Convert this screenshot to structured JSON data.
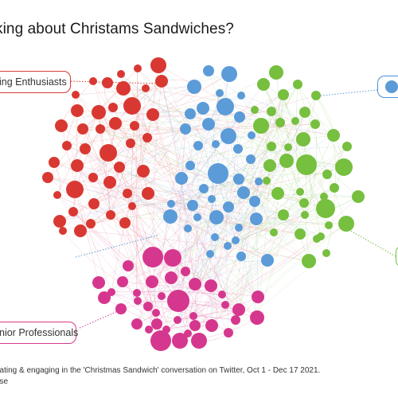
{
  "title": "king about Christams Sandwiches?",
  "labels": {
    "red": "ing Enthusiasts",
    "pink": "nior Professionals"
  },
  "footnote": {
    "line1": "pating & engaging in the 'Christmas Sandwich' conversation on Twitter, Oct 1  - Dec 17 2021.",
    "line2": "nse"
  },
  "colors": {
    "red": "#d93832",
    "blue": "#5b9bd8",
    "green": "#76bf3f",
    "pink": "#d6378e"
  },
  "chart_data": {
    "type": "network",
    "clusters": [
      {
        "name": "ing Enthusiasts",
        "color": "#d93832"
      },
      {
        "name": "",
        "color": "#5b9bd8"
      },
      {
        "name": "",
        "color": "#76bf3f"
      },
      {
        "name": "nior Professionals",
        "color": "#d6378e"
      }
    ]
  }
}
